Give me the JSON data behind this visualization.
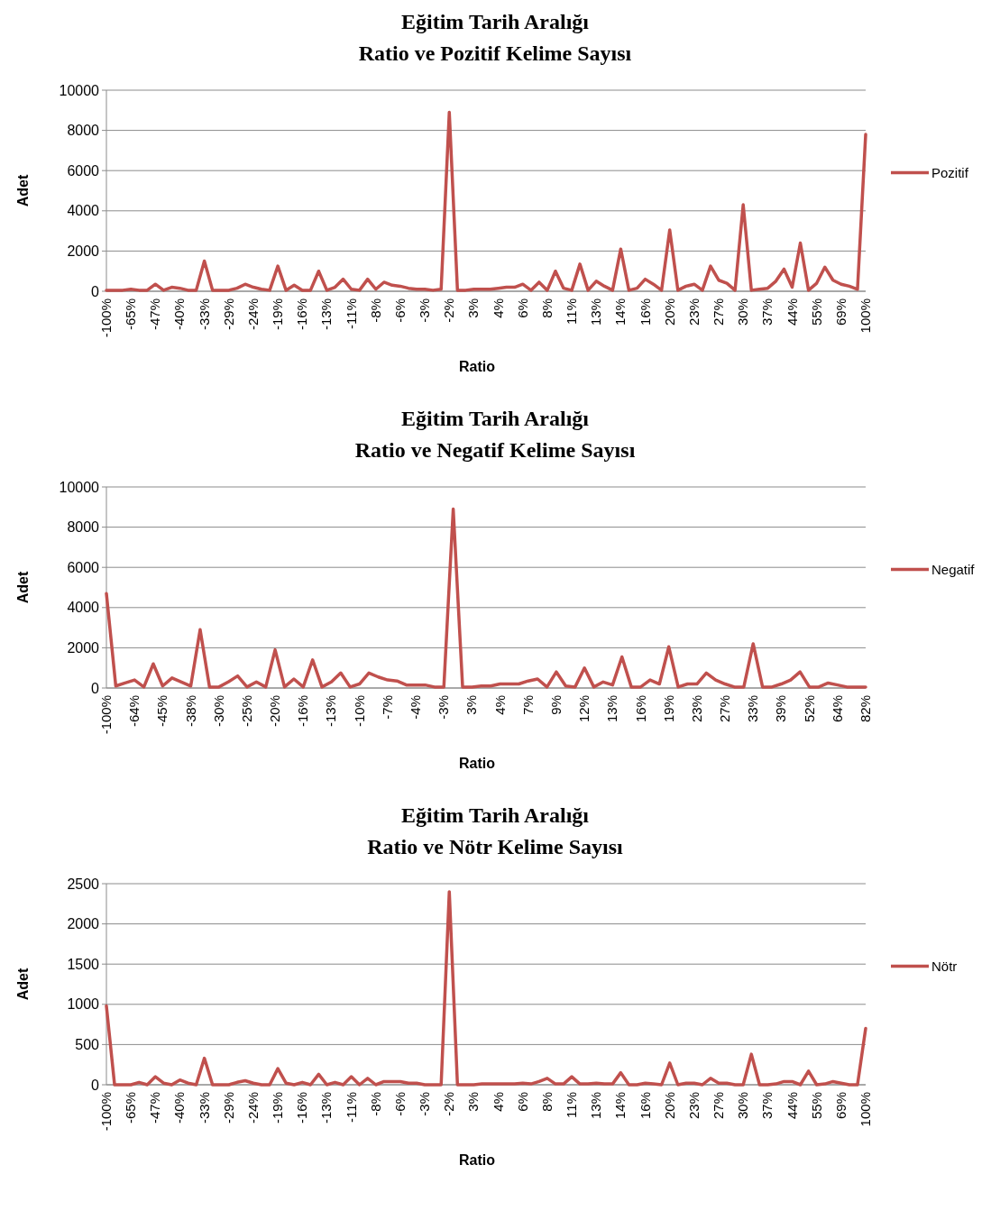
{
  "chart_data": [
    {
      "type": "line",
      "title": "Eğitim Tarih Aralığı",
      "subtitle": "Ratio ve Pozitif Kelime Sayısı",
      "xlabel": "Ratio",
      "ylabel": "Adet",
      "ylim": [
        0,
        10000
      ],
      "yticks": [
        0,
        2000,
        4000,
        6000,
        8000,
        10000
      ],
      "grid": "y",
      "legend": "right",
      "categories": [
        "-100%",
        null,
        null,
        "-65%",
        null,
        null,
        "-47%",
        null,
        null,
        "-40%",
        null,
        null,
        "-33%",
        null,
        null,
        "-29%",
        null,
        null,
        "-24%",
        null,
        null,
        "-19%",
        null,
        null,
        "-16%",
        null,
        null,
        "-13%",
        null,
        null,
        "-11%",
        null,
        null,
        "-8%",
        null,
        null,
        "-6%",
        null,
        null,
        "-3%",
        null,
        null,
        "-2%",
        null,
        null,
        "3%",
        null,
        null,
        "4%",
        null,
        null,
        "6%",
        null,
        null,
        "8%",
        null,
        null,
        "11%",
        null,
        null,
        "13%",
        null,
        null,
        "14%",
        null,
        null,
        "16%",
        null,
        null,
        "20%",
        null,
        null,
        "23%",
        null,
        null,
        "27%",
        null,
        null,
        "30%",
        null,
        null,
        "37%",
        null,
        null,
        "44%",
        null,
        null,
        "55%",
        null,
        null,
        "69%",
        null,
        null,
        "100%"
      ],
      "series": [
        {
          "name": "Pozitif",
          "color": "#c0504d",
          "values": [
            50,
            50,
            50,
            100,
            50,
            50,
            350,
            50,
            200,
            150,
            50,
            50,
            1500,
            50,
            50,
            50,
            150,
            350,
            200,
            100,
            50,
            1250,
            50,
            300,
            50,
            50,
            1000,
            50,
            200,
            600,
            100,
            50,
            600,
            100,
            450,
            300,
            250,
            150,
            100,
            100,
            50,
            100,
            8900,
            50,
            50,
            100,
            100,
            100,
            150,
            200,
            200,
            350,
            50,
            450,
            50,
            1000,
            150,
            50,
            1350,
            50,
            500,
            250,
            50,
            2100,
            50,
            150,
            600,
            350,
            50,
            3050,
            50,
            250,
            350,
            50,
            1250,
            550,
            400,
            50,
            4300,
            50,
            100,
            150,
            500,
            1100,
            200,
            2400,
            50,
            400,
            1200,
            550,
            350,
            250,
            100,
            7800
          ]
        }
      ]
    },
    {
      "type": "line",
      "title": "Eğitim Tarih Aralığı",
      "subtitle": "Ratio ve Negatif Kelime Sayısı",
      "xlabel": "Ratio",
      "ylabel": "Adet",
      "ylim": [
        0,
        10000
      ],
      "yticks": [
        0,
        2000,
        4000,
        6000,
        8000,
        10000
      ],
      "grid": "y",
      "legend": "right",
      "categories": [
        "-100%",
        null,
        null,
        "-64%",
        null,
        null,
        "-45%",
        null,
        null,
        "-38%",
        null,
        null,
        "-30%",
        null,
        null,
        "-25%",
        null,
        null,
        "-20%",
        null,
        null,
        "-16%",
        null,
        null,
        "-13%",
        null,
        null,
        "-10%",
        null,
        null,
        "-7%",
        null,
        null,
        "-4%",
        null,
        null,
        "-3%",
        null,
        null,
        "3%",
        null,
        null,
        "4%",
        null,
        null,
        "7%",
        null,
        null,
        "9%",
        null,
        null,
        "12%",
        null,
        null,
        "13%",
        null,
        null,
        "16%",
        null,
        null,
        "19%",
        null,
        null,
        "23%",
        null,
        null,
        "27%",
        null,
        null,
        "33%",
        null,
        null,
        "39%",
        null,
        null,
        "52%",
        null,
        null,
        "64%",
        null,
        null,
        "82%"
      ],
      "series": [
        {
          "name": "Negatif",
          "color": "#c0504d",
          "values": [
            4700,
            100,
            250,
            400,
            50,
            1200,
            100,
            500,
            300,
            100,
            2900,
            50,
            50,
            300,
            600,
            50,
            300,
            50,
            1900,
            50,
            450,
            50,
            1400,
            50,
            300,
            750,
            50,
            200,
            750,
            550,
            400,
            350,
            150,
            150,
            150,
            50,
            50,
            8900,
            50,
            50,
            100,
            100,
            200,
            200,
            200,
            350,
            450,
            50,
            800,
            100,
            50,
            1000,
            50,
            300,
            150,
            1550,
            50,
            50,
            400,
            200,
            2050,
            50,
            200,
            200,
            750,
            400,
            200,
            50,
            50,
            2200,
            50,
            50,
            200,
            400,
            800,
            50,
            50,
            250,
            150,
            50,
            50,
            50
          ]
        }
      ]
    },
    {
      "type": "line",
      "title": "Eğitim Tarih Aralığı",
      "subtitle": "Ratio ve Nötr Kelime Sayısı",
      "xlabel": "Ratio",
      "ylabel": "Adet",
      "ylim": [
        0,
        2500
      ],
      "yticks": [
        0,
        500,
        1000,
        1500,
        2000,
        2500
      ],
      "grid": "y",
      "legend": "right",
      "categories": [
        "-100%",
        null,
        null,
        "-65%",
        null,
        null,
        "-47%",
        null,
        null,
        "-40%",
        null,
        null,
        "-33%",
        null,
        null,
        "-29%",
        null,
        null,
        "-24%",
        null,
        null,
        "-19%",
        null,
        null,
        "-16%",
        null,
        null,
        "-13%",
        null,
        null,
        "-11%",
        null,
        null,
        "-8%",
        null,
        null,
        "-6%",
        null,
        null,
        "-3%",
        null,
        null,
        "-2%",
        null,
        null,
        "3%",
        null,
        null,
        "4%",
        null,
        null,
        "6%",
        null,
        null,
        "8%",
        null,
        null,
        "11%",
        null,
        null,
        "13%",
        null,
        null,
        "14%",
        null,
        null,
        "16%",
        null,
        null,
        "20%",
        null,
        null,
        "23%",
        null,
        null,
        "27%",
        null,
        null,
        "30%",
        null,
        null,
        "37%",
        null,
        null,
        "44%",
        null,
        null,
        "55%",
        null,
        null,
        "69%",
        null,
        null,
        "100%"
      ],
      "series": [
        {
          "name": "Nötr",
          "color": "#c0504d",
          "values": [
            980,
            0,
            0,
            0,
            30,
            0,
            100,
            20,
            0,
            60,
            20,
            0,
            330,
            0,
            0,
            0,
            30,
            50,
            20,
            0,
            0,
            200,
            20,
            0,
            30,
            0,
            130,
            0,
            30,
            0,
            100,
            0,
            80,
            0,
            40,
            40,
            40,
            20,
            20,
            0,
            0,
            0,
            2400,
            0,
            0,
            0,
            10,
            10,
            10,
            10,
            10,
            20,
            10,
            40,
            80,
            10,
            10,
            100,
            10,
            10,
            20,
            10,
            10,
            150,
            0,
            0,
            20,
            10,
            0,
            270,
            0,
            20,
            20,
            0,
            80,
            20,
            20,
            0,
            0,
            380,
            0,
            0,
            10,
            40,
            40,
            0,
            170,
            0,
            10,
            40,
            20,
            0,
            0,
            700
          ]
        }
      ]
    }
  ]
}
